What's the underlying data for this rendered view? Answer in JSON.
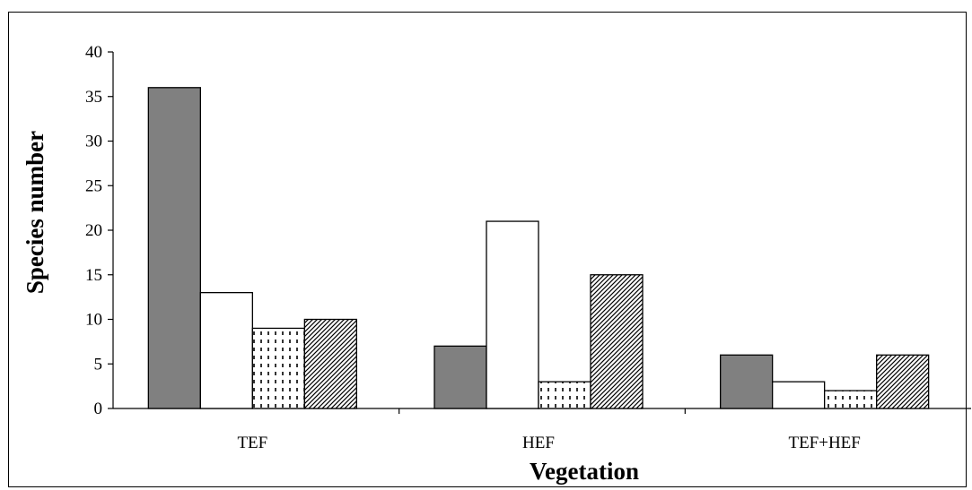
{
  "chart_data": {
    "type": "bar",
    "title": "",
    "xlabel": "Vegetation",
    "ylabel": "Species  number",
    "categories": [
      "TEF",
      "HEF",
      "TEF+HEF"
    ],
    "ylim": [
      0,
      40
    ],
    "yticks": [
      0,
      5,
      10,
      15,
      20,
      25,
      30,
      35,
      40
    ],
    "grid": false,
    "legend": "none",
    "series": [
      {
        "values": [
          36,
          7,
          6
        ],
        "fill": "solid",
        "color": "#808080"
      },
      {
        "values": [
          13,
          21,
          3
        ],
        "fill": "solid",
        "color": "#ffffff"
      },
      {
        "values": [
          9,
          3,
          2
        ],
        "fill": "dashes",
        "color": "#ffffff"
      },
      {
        "values": [
          10,
          15,
          6
        ],
        "fill": "diagonal-hatch",
        "color": "#ffffff"
      }
    ]
  }
}
